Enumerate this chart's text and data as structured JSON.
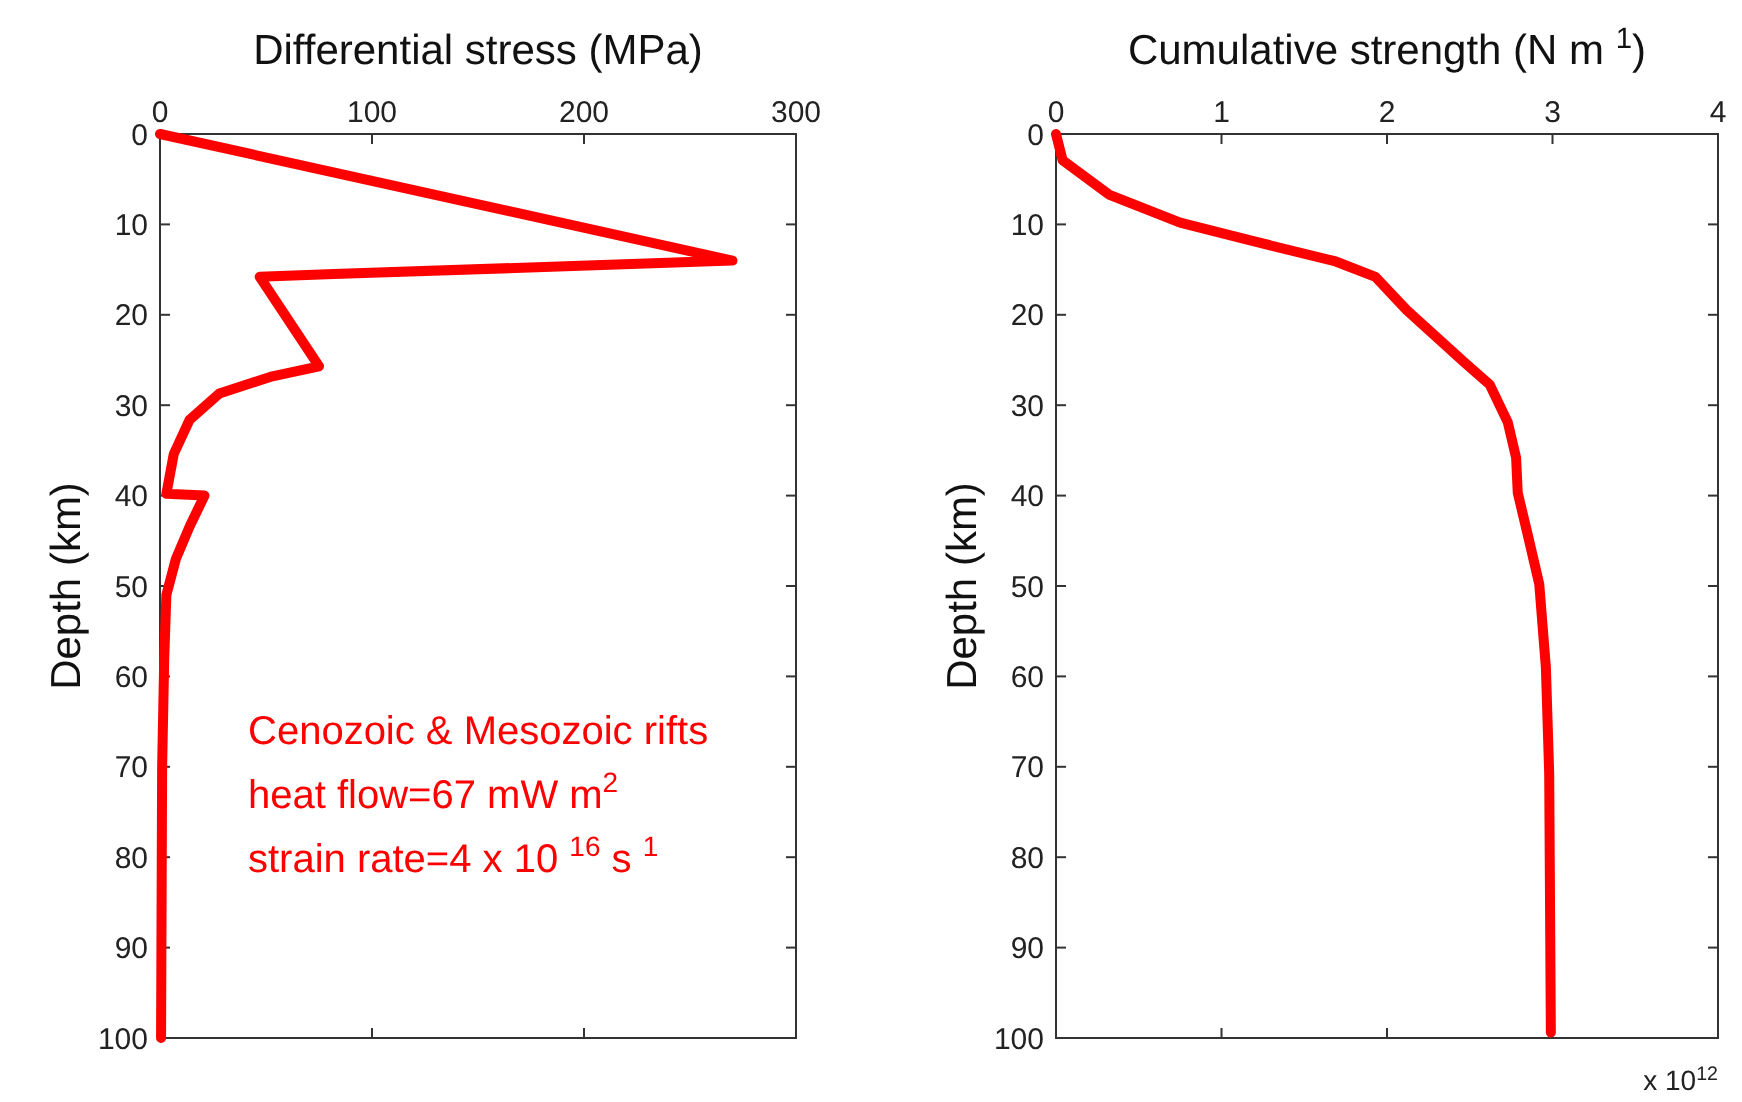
{
  "chart_data": [
    {
      "type": "line",
      "xlabel": "Differential stress (MPa)",
      "ylabel": "Depth (km)",
      "xlim": [
        0,
        300
      ],
      "xticks": [
        0,
        100,
        200,
        300
      ],
      "ylim": [
        100,
        0
      ],
      "yticks": [
        0,
        10,
        20,
        30,
        40,
        50,
        60,
        70,
        80,
        90,
        100
      ],
      "grid": false,
      "series": [
        {
          "color": "#ff0000",
          "x": [
            0,
            270,
            82,
            47,
            75,
            53,
            28,
            14,
            6.5,
            3,
            21,
            14,
            7.5,
            3,
            2,
            1,
            0.5
          ],
          "values": [
            0,
            14,
            15.5,
            15.8,
            25.7,
            26.8,
            28.7,
            31.6,
            35.4,
            39.8,
            40,
            43.4,
            47,
            51,
            58,
            70,
            100
          ]
        }
      ],
      "annotations": [
        "Cenozoic & Mesozoic rifts",
        "heat flow=67 mW m$^{2}$",
        "strain rate=4 x 10 $^{16}$ s $^{1}$"
      ]
    },
    {
      "type": "line",
      "xlabel": "Cumulative strength (N m $^{1}$)",
      "ylabel": "Depth (km)",
      "xlim": [
        0,
        4
      ],
      "xticks": [
        0,
        1,
        2,
        3,
        4
      ],
      "ylim": [
        100,
        0
      ],
      "yticks": [
        0,
        10,
        20,
        30,
        40,
        50,
        60,
        70,
        80,
        90,
        100
      ],
      "grid": false,
      "series": [
        {
          "color": "#ff0000",
          "x": [
            0,
            0.04,
            0.32,
            0.75,
            1.18,
            1.69,
            1.93,
            2.12,
            2.47,
            2.62,
            2.73,
            2.78,
            2.79,
            2.85,
            2.92,
            2.96,
            2.98,
            2.99
          ],
          "values": [
            0,
            2.9,
            6.7,
            9.8,
            11.8,
            14.1,
            15.8,
            19.5,
            25.3,
            27.7,
            31.9,
            35.8,
            39.7,
            44.3,
            49.8,
            59,
            70.7,
            99.4
          ]
        }
      ],
      "annotations": [
        "x 10$^{12}$"
      ]
    }
  ]
}
